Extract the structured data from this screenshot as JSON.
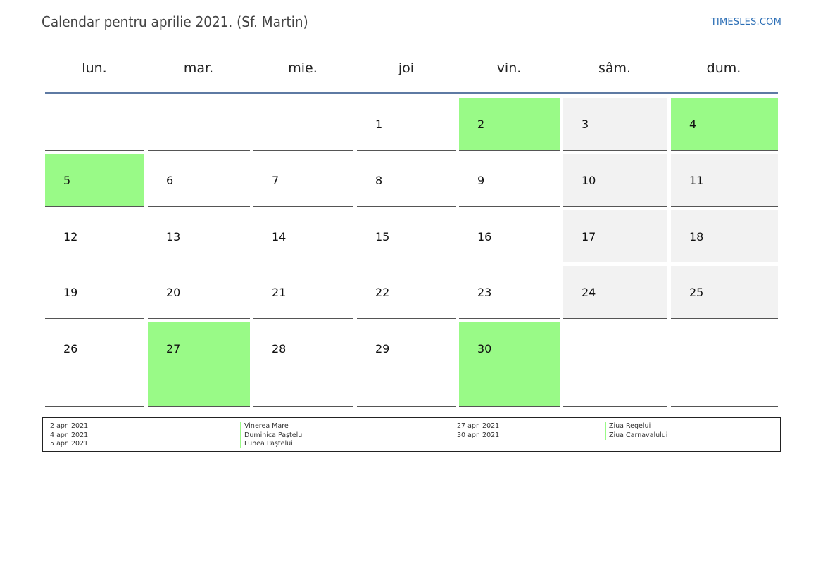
{
  "header": {
    "title": "Calendar pentru aprilie 2021. (Sf. Martin)",
    "brand": "TIMESLES.COM"
  },
  "colors": {
    "holiday": "#99fa87",
    "weekend": "#f2f2f2",
    "header_line": "#5e7aa3",
    "brand": "#2a6db5"
  },
  "weekdays": [
    "lun.",
    "mar.",
    "mie.",
    "joi",
    "vin.",
    "sâm.",
    "dum."
  ],
  "weeks": [
    [
      {
        "day": "",
        "type": "empty"
      },
      {
        "day": "",
        "type": "empty"
      },
      {
        "day": "",
        "type": "empty"
      },
      {
        "day": "1",
        "type": "normal"
      },
      {
        "day": "2",
        "type": "holiday"
      },
      {
        "day": "3",
        "type": "weekend"
      },
      {
        "day": "4",
        "type": "holiday"
      }
    ],
    [
      {
        "day": "5",
        "type": "holiday"
      },
      {
        "day": "6",
        "type": "normal"
      },
      {
        "day": "7",
        "type": "normal"
      },
      {
        "day": "8",
        "type": "normal"
      },
      {
        "day": "9",
        "type": "normal"
      },
      {
        "day": "10",
        "type": "weekend"
      },
      {
        "day": "11",
        "type": "weekend"
      }
    ],
    [
      {
        "day": "12",
        "type": "normal"
      },
      {
        "day": "13",
        "type": "normal"
      },
      {
        "day": "14",
        "type": "normal"
      },
      {
        "day": "15",
        "type": "normal"
      },
      {
        "day": "16",
        "type": "normal"
      },
      {
        "day": "17",
        "type": "weekend"
      },
      {
        "day": "18",
        "type": "weekend"
      }
    ],
    [
      {
        "day": "19",
        "type": "normal"
      },
      {
        "day": "20",
        "type": "normal"
      },
      {
        "day": "21",
        "type": "normal"
      },
      {
        "day": "22",
        "type": "normal"
      },
      {
        "day": "23",
        "type": "normal"
      },
      {
        "day": "24",
        "type": "weekend"
      },
      {
        "day": "25",
        "type": "weekend"
      }
    ],
    [
      {
        "day": "26",
        "type": "normal"
      },
      {
        "day": "27",
        "type": "holiday"
      },
      {
        "day": "28",
        "type": "normal"
      },
      {
        "day": "29",
        "type": "normal"
      },
      {
        "day": "30",
        "type": "holiday"
      },
      {
        "day": "",
        "type": "empty"
      },
      {
        "day": "",
        "type": "empty"
      }
    ]
  ],
  "legend": {
    "left": [
      {
        "date": "2 apr. 2021",
        "name": "Vinerea Mare"
      },
      {
        "date": "4 apr. 2021",
        "name": "Duminica Paștelui"
      },
      {
        "date": "5 apr. 2021",
        "name": "Lunea Paștelui"
      }
    ],
    "right": [
      {
        "date": "27 apr. 2021",
        "name": "Ziua Regelui"
      },
      {
        "date": "30 apr. 2021",
        "name": "Ziua Carnavalului"
      }
    ]
  }
}
